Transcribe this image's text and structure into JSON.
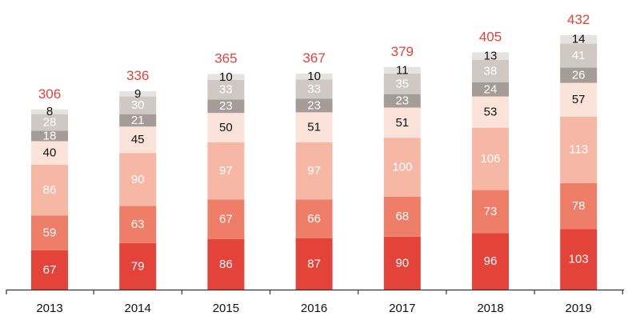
{
  "chart_data": {
    "type": "bar",
    "stacked": true,
    "title": "",
    "xlabel": "",
    "ylabel": "",
    "ylim": [
      0,
      450
    ],
    "grid": false,
    "legend": "none",
    "categories": [
      "2013",
      "2014",
      "2015",
      "2016",
      "2017",
      "2018",
      "2019"
    ],
    "totals": [
      306,
      336,
      365,
      367,
      379,
      405,
      432
    ],
    "series": [
      {
        "color": "#e4433a",
        "label_color": "#ffffff",
        "values": [
          67,
          79,
          86,
          87,
          90,
          96,
          103
        ]
      },
      {
        "color": "#ee7e68",
        "label_color": "#ffffff",
        "values": [
          59,
          63,
          67,
          66,
          68,
          73,
          78
        ]
      },
      {
        "color": "#f6b8a5",
        "label_color": "#ffffff",
        "values": [
          86,
          90,
          97,
          97,
          100,
          106,
          113
        ]
      },
      {
        "color": "#fce3d9",
        "label_color": "#111111",
        "values": [
          40,
          45,
          50,
          51,
          51,
          53,
          57
        ]
      },
      {
        "color": "#a59c97",
        "label_color": "#ffffff",
        "values": [
          18,
          21,
          23,
          23,
          23,
          24,
          26
        ]
      },
      {
        "color": "#cfc8c4",
        "label_color": "#ffffff",
        "values": [
          28,
          30,
          33,
          33,
          35,
          38,
          41
        ]
      },
      {
        "color": "#e6e2df",
        "label_color": "#111111",
        "values": [
          8,
          9,
          10,
          10,
          11,
          13,
          14
        ]
      }
    ],
    "total_color": "#e4433a",
    "axis_color": "#333333"
  }
}
